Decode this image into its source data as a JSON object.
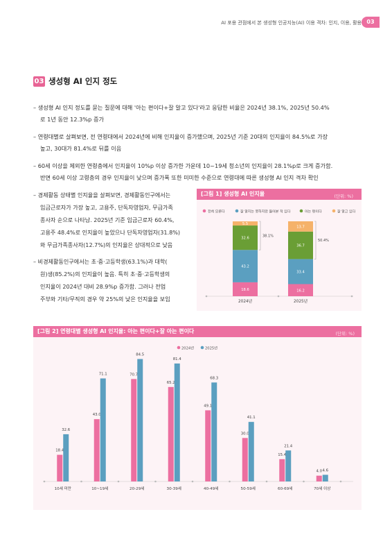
{
  "header": {
    "title": "AI 포용 관점에서 본 생성형 인공지능(AI) 이용 격차: 인지, 이용, 활용",
    "page_badge": "03"
  },
  "section": {
    "number": "03",
    "title": "생성형 AI 인지 정도"
  },
  "bullets": [
    {
      "lines": [
        "– 생성형 AI 인지 정도를 묻는 질문에 대해 '아는 편이다+잘 알고 있다'라고 응답한 비율은 2024년 38.1%, 2025년 50.4%",
        "로 1년 동안 12.3%p 증가"
      ]
    },
    {
      "lines": [
        "– 연령대별로 살펴보면, 전 연령대에서 2024년에 비해 인지율이 증가했으며, 2025년 기준 20대의 인지율이 84.5%로 가장",
        "높고, 30대가 81.4%로 뒤를 이음"
      ]
    },
    {
      "lines": [
        "– 60세 이상을 제외한 연령층에서 인지율이 10%p 이상 증가한 가운데 10~19세 청소년의 인지율이 28.1%p로 크게 증가함.",
        "반면 60세 이상 고령층의 경우 인지율이 낮으며 증가폭 또한 미미한 수준으로 연령대에 따른 생성형 AI 인지 격차 확인"
      ]
    }
  ],
  "left_bullets": [
    {
      "lines": [
        "– 경제활동 상태별 인지율을 살펴보면, 경제활동인구에서는",
        "임금근로자가 가장 높고, 고용주, 단독자영업자, 무급가족",
        "종사자 순으로 나타남. 2025년 기준 임금근로자 60.4%,",
        "고용주 48.4%로 인지율이 높았으나 단독자영업자(31.8%)",
        "와 무급가족종사자(12.7%)의 인지율은 상대적으로 낮음"
      ]
    },
    {
      "lines": [
        "– 비경제활동인구에서는 초·중·고등학생(63.1%)과 대학(",
        "원)생(85.2%)의 인지율이 높음. 특히 초·중·고등학생의",
        "인지율이 2024년 대비 28.9%p 증가함. 그러나 전업",
        "주부와 기타/무직의 경우 약 25%의 낮은 인지율을 보임"
      ]
    }
  ],
  "figure1": {
    "title": "[그림 1]  생성형 AI 인지율",
    "unit": "(단위: %)",
    "legend": [
      {
        "label": "전혀 모른다",
        "color": "#ec6fa0"
      },
      {
        "label": "잘 알지는 못하지만 들어본 적 있다",
        "color": "#5b9fc0"
      },
      {
        "label": "아는 편이다",
        "color": "#6a9e35"
      },
      {
        "label": "잘 알고 있다",
        "color": "#f5b26a"
      }
    ],
    "bar_labels": [
      "2024년",
      "2025년"
    ],
    "stack_values": [
      [
        "18.6",
        "43.2",
        "32.6",
        "5.5"
      ],
      [
        "16.2",
        "33.4",
        "36.7",
        "13.7"
      ]
    ],
    "brace_labels": [
      "38.1%",
      "50.4%"
    ]
  },
  "figure2": {
    "title": "[그림 2]  연령대별 생성형 AI 인지율: 아는 편이다+잘 아는 편이다",
    "unit": "(단위: %)"
  },
  "chart_data": [
    {
      "type": "bar",
      "stacked": true,
      "title": "[그림 1]  생성형 AI 인지율",
      "unit": "(단위: %)",
      "categories": [
        "2024년",
        "2025년"
      ],
      "series": [
        {
          "name": "전혀 모른다",
          "values": [
            18.6,
            16.2
          ],
          "color": "#ec6fa0"
        },
        {
          "name": "잘 알지는 못하지만 들어본 적 있다",
          "values": [
            43.2,
            33.4
          ],
          "color": "#5b9fc0"
        },
        {
          "name": "아는 편이다",
          "values": [
            32.6,
            36.7
          ],
          "color": "#6a9e35"
        },
        {
          "name": "잘 알고 있다",
          "values": [
            5.5,
            13.7
          ],
          "color": "#f5b26a"
        }
      ],
      "ylim": [
        0,
        100
      ],
      "legend": "top"
    },
    {
      "type": "bar",
      "title": "[그림 2]  연령대별 생성형 AI 인지율: 아는 편이다+잘 아는 편이다",
      "unit": "(단위: %)",
      "categories": [
        "10세 미만",
        "10~19세",
        "20-29세",
        "30-39세",
        "40-49세",
        "50-59세",
        "60-69세",
        "70세 이상"
      ],
      "series": [
        {
          "name": "2024년",
          "values": [
            18.4,
            43.0,
            70.7,
            65.2,
            49.1,
            30.0,
            15.4,
            4.0
          ],
          "color": "#ec6fa0"
        },
        {
          "name": "2025년",
          "values": [
            32.6,
            71.1,
            84.5,
            81.4,
            68.3,
            41.1,
            21.4,
            4.6
          ],
          "color": "#5b9fc0"
        }
      ],
      "value_labels": [
        [
          "18.4",
          "43.0",
          "70.7",
          "65.2",
          "49.1",
          "30.0",
          "15.4",
          "4.0"
        ],
        [
          "32.6",
          "71.1",
          "84.5",
          "81.4",
          "68.3",
          "41.1",
          "21.4",
          "4.6"
        ]
      ],
      "ylim": [
        0,
        90
      ],
      "legend": "top-center"
    }
  ]
}
